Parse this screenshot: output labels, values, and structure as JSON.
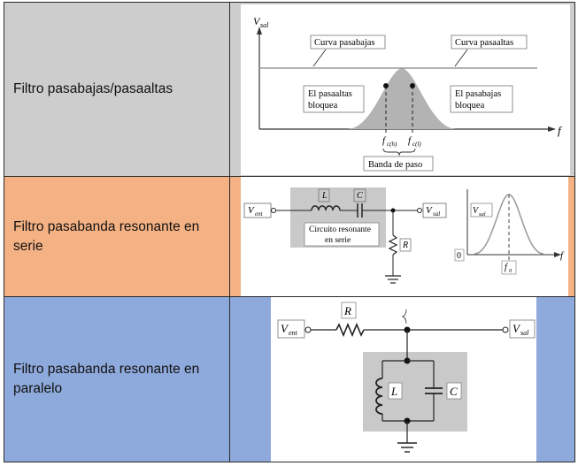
{
  "rows": [
    {
      "label": "Filtro pasabajas/pasaaltas",
      "color": "#cdcdcd",
      "figure": {
        "y_axis": "V",
        "y_axis_sub": "sal",
        "x_axis": "f",
        "curve_low": "Curva pasabajas",
        "curve_high": "Curva pasaaltas",
        "block_left_1": "El pasaaltas",
        "block_left_2": "bloquea",
        "block_right_1": "El pasabajas",
        "block_right_2": "bloquea",
        "fc_h": "f",
        "fc_h_sub": "c(h)",
        "fc_l": "f",
        "fc_l_sub": "c(l)",
        "band": "Banda de paso"
      }
    },
    {
      "label": "Filtro pasabanda resonante en serie",
      "color": "#f4b183",
      "figure": {
        "v_in": "V",
        "v_in_sub": "ent",
        "v_out": "V",
        "v_out_sub": "sal",
        "L": "L",
        "C": "C",
        "R": "R",
        "box_1": "Circuito resonante",
        "box_2": "en serie",
        "graph_y": "V",
        "graph_y_sub": "sal",
        "graph_origin": "0",
        "graph_x": "f",
        "f0": "f",
        "f0_sub": "0"
      }
    },
    {
      "label": "Filtro pasabanda resonante en paralelo",
      "color": "#8ea9db",
      "figure": {
        "v_in": "V",
        "v_in_sub": "ent",
        "v_out": "V",
        "v_out_sub": "sal",
        "R": "R",
        "L": "L",
        "C": "C"
      }
    }
  ]
}
